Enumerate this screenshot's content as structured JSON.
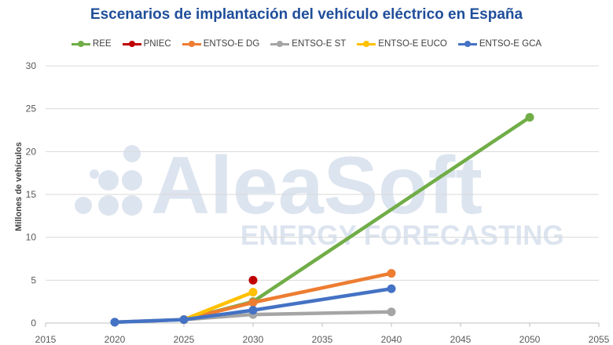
{
  "colors": {
    "title": "#1F4E9A",
    "grid": "#D9D9D9",
    "axis": "#BFBFBF",
    "watermark": "#DCE4EF"
  },
  "watermark": {
    "brand": "AleaSoft",
    "tagline": "ENERGY FORECASTING"
  },
  "chart_data": {
    "type": "line",
    "title": "Escenarios de implantación del vehículo eléctrico en España",
    "xlabel": "",
    "ylabel": "Millones de vehículos",
    "xlim": [
      2015,
      2055
    ],
    "ylim": [
      0,
      30
    ],
    "x_ticks": [
      2015,
      2020,
      2025,
      2030,
      2035,
      2040,
      2045,
      2050,
      2055
    ],
    "y_ticks": [
      0,
      5,
      10,
      15,
      20,
      25,
      30
    ],
    "grid": "horizontal",
    "legend_position": "top",
    "series": [
      {
        "name": "REE",
        "color": "#70AD47",
        "points": [
          [
            2025,
            0.4
          ],
          [
            2030,
            2.5
          ],
          [
            2050,
            24.0
          ]
        ]
      },
      {
        "name": "PNIEC",
        "color": "#C00000",
        "points": [
          [
            2030,
            5.0
          ]
        ]
      },
      {
        "name": "ENTSO-E DG",
        "color": "#ED7D31",
        "points": [
          [
            2025,
            0.4
          ],
          [
            2030,
            2.4
          ],
          [
            2040,
            5.8
          ]
        ]
      },
      {
        "name": "ENTSO-E ST",
        "color": "#A5A5A5",
        "points": [
          [
            2020,
            0.1
          ],
          [
            2025,
            0.4
          ],
          [
            2030,
            1.0
          ],
          [
            2040,
            1.3
          ]
        ]
      },
      {
        "name": "ENTSO-E EUCO",
        "color": "#FFC000",
        "points": [
          [
            2025,
            0.4
          ],
          [
            2030,
            3.6
          ]
        ]
      },
      {
        "name": "ENTSO-E GCA",
        "color": "#4472C4",
        "points": [
          [
            2020,
            0.1
          ],
          [
            2025,
            0.4
          ],
          [
            2030,
            1.5
          ],
          [
            2040,
            4.0
          ]
        ]
      }
    ]
  }
}
